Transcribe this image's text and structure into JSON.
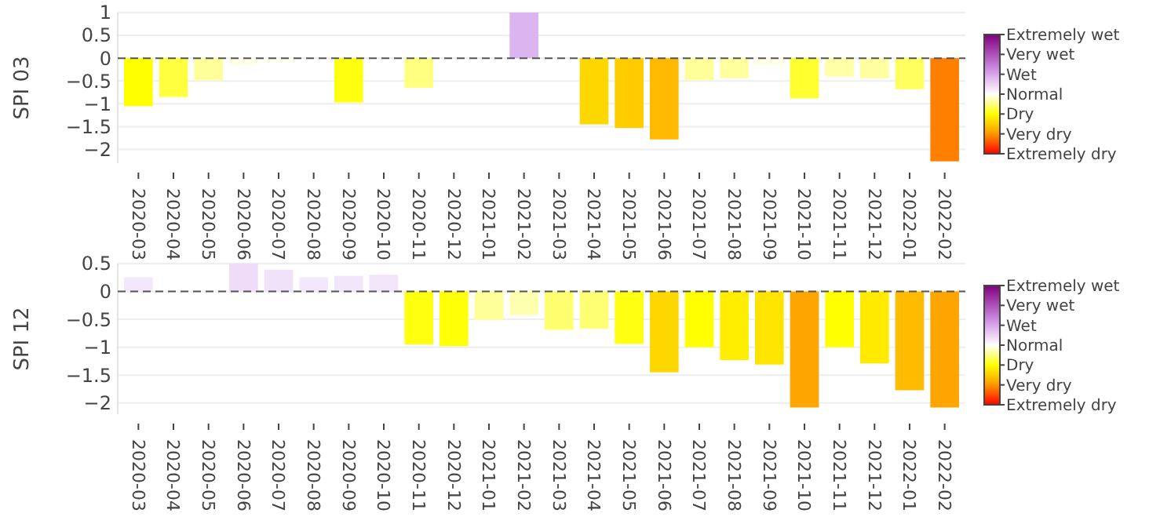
{
  "chart_data": [
    {
      "type": "bar",
      "ylabel": "SPI 03",
      "categories": [
        "2020-03",
        "2020-04",
        "2020-05",
        "2020-06",
        "2020-07",
        "2020-08",
        "2020-09",
        "2020-10",
        "2020-11",
        "2020-12",
        "2021-01",
        "2021-02",
        "2021-03",
        "2021-04",
        "2021-05",
        "2021-06",
        "2021-07",
        "2021-08",
        "2021-09",
        "2021-10",
        "2021-11",
        "2021-12",
        "2022-01",
        "2022-02"
      ],
      "values": [
        -1.05,
        -0.85,
        -0.48,
        -0.15,
        -0.1,
        null,
        -0.97,
        0,
        -0.65,
        null,
        null,
        1.0,
        0,
        -1.45,
        -1.53,
        -1.78,
        -0.48,
        -0.44,
        -0.15,
        -0.88,
        -0.4,
        -0.44,
        -0.68,
        -2.26
      ],
      "colors": [
        "#ffff00",
        "#ffff40",
        "#ffff99",
        "#ffffe6",
        "#ffffee",
        null,
        "#ffff10",
        "#ffffff",
        "#ffff80",
        null,
        null,
        "#dcb4f0",
        "#ffffff",
        "#ffd700",
        "#ffcc00",
        "#ffb900",
        "#ffff99",
        "#ffffa0",
        "#ffffe6",
        "#ffff30",
        "#ffffa8",
        "#ffffa0",
        "#ffff60",
        "#ff8000"
      ],
      "ylim": [
        -2.3,
        1
      ],
      "yticks": [
        -2,
        -1.5,
        -1,
        -0.5,
        0,
        0.5,
        1
      ],
      "grid": "y",
      "ref_lines": [
        {
          "axis": "y",
          "value": 0,
          "line_style": "dashed",
          "color": "#555555"
        }
      ],
      "clim": [
        -3,
        3
      ],
      "cticks": [
        {
          "value": -3,
          "label": "Extremely dry"
        },
        {
          "value": -2,
          "label": "Very dry"
        },
        {
          "value": -1,
          "label": "Dry"
        },
        {
          "value": 0,
          "label": "Normal"
        },
        {
          "value": 1,
          "label": "Wet"
        },
        {
          "value": 2,
          "label": "Very wet"
        },
        {
          "value": 3,
          "label": "Extremely wet"
        }
      ]
    },
    {
      "type": "bar",
      "ylabel": "SPI 12",
      "categories": [
        "2020-03",
        "2020-04",
        "2020-05",
        "2020-06",
        "2020-07",
        "2020-08",
        "2020-09",
        "2020-10",
        "2020-11",
        "2020-12",
        "2021-01",
        "2021-02",
        "2021-03",
        "2021-04",
        "2021-05",
        "2021-06",
        "2021-07",
        "2021-08",
        "2021-09",
        "2021-10",
        "2021-11",
        "2021-12",
        "2022-01",
        "2022-02"
      ],
      "values": [
        0.25,
        0.01,
        -0.01,
        0.5,
        0.39,
        0.25,
        0.28,
        0.3,
        -0.95,
        -0.98,
        -0.51,
        -0.42,
        -0.69,
        -0.67,
        -0.94,
        -1.45,
        -1.0,
        -1.23,
        -1.31,
        -2.08,
        -1.0,
        -1.29,
        -1.77,
        -2.08
      ],
      "colors": [
        "#f3e8fb",
        "#fefcff",
        "#fffffc",
        "#eedcf8",
        "#f0e2f9",
        "#f3e8fb",
        "#f2e6fa",
        "#f2e5fa",
        "#ffff10",
        "#ffff08",
        "#ffff99",
        "#ffffb0",
        "#ffff70",
        "#ffff74",
        "#ffff12",
        "#ffd700",
        "#ffff00",
        "#ffee00",
        "#ffe400",
        "#ffa500",
        "#ffff00",
        "#ffea00",
        "#ffbb00",
        "#ffa500"
      ],
      "ylim": [
        -2.2,
        0.5
      ],
      "yticks": [
        -2,
        -1.5,
        -1,
        -0.5,
        0,
        0.5
      ],
      "grid": "y",
      "ref_lines": [
        {
          "axis": "y",
          "value": 0,
          "line_style": "dashed",
          "color": "#555555"
        }
      ],
      "clim": [
        -3,
        3
      ],
      "cticks": [
        {
          "value": -3,
          "label": "Extremely dry"
        },
        {
          "value": -2,
          "label": "Very dry"
        },
        {
          "value": -1,
          "label": "Dry"
        },
        {
          "value": 0,
          "label": "Normal"
        },
        {
          "value": 1,
          "label": "Wet"
        },
        {
          "value": 2,
          "label": "Very wet"
        },
        {
          "value": 3,
          "label": "Extremely wet"
        }
      ]
    }
  ]
}
